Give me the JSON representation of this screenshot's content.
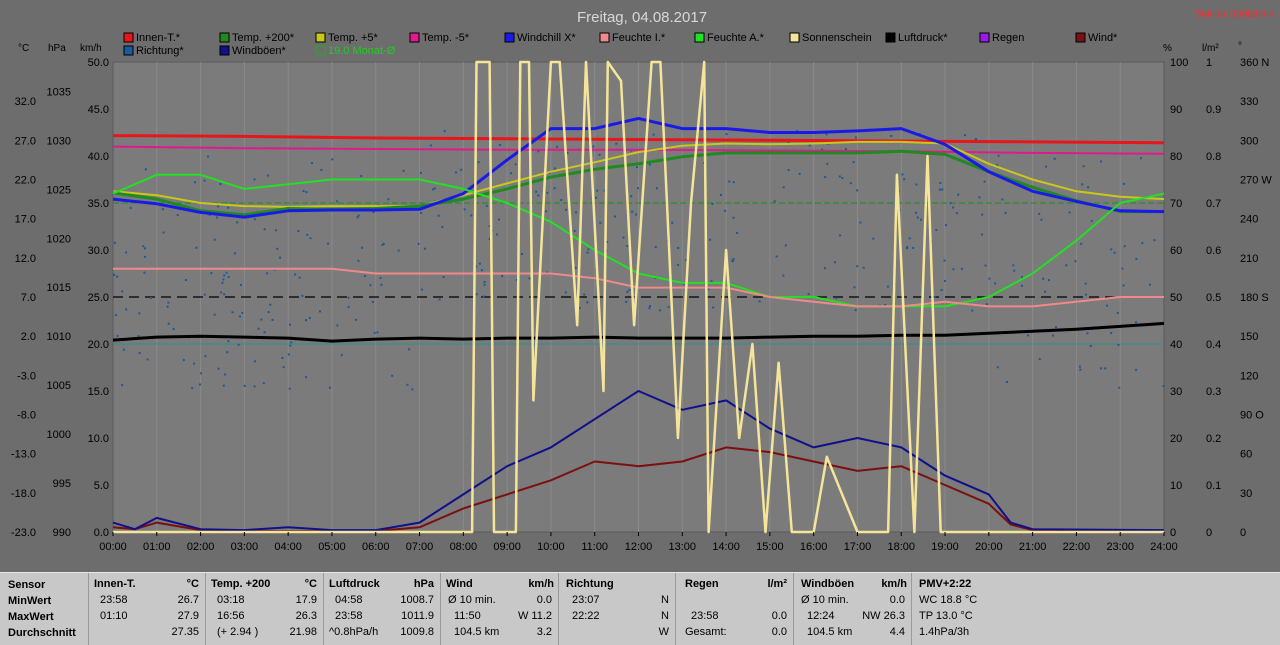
{
  "title": "Freitag, 04.08.2017",
  "station": "Station Göritzhain",
  "colors": {
    "bg": "#6d6d6d",
    "plot": "#7b7b7b",
    "grid": "#888888"
  },
  "legend": [
    {
      "label": "Innen-T.*",
      "color": "#e8161b"
    },
    {
      "label": "Temp. +200*",
      "color": "#1f8a1f"
    },
    {
      "label": "Temp. +5*",
      "color": "#c8c81c"
    },
    {
      "label": "Temp. -5*",
      "color": "#e01a8a"
    },
    {
      "label": "Windchill X*",
      "color": "#1a1ae8"
    },
    {
      "label": "Feuchte I.*",
      "color": "#f08a8a"
    },
    {
      "label": "Feuchte A.*",
      "color": "#22e022"
    },
    {
      "label": "Sonnenschein",
      "color": "#f5e59a"
    },
    {
      "label": "Luftdruck*",
      "color": "#000000"
    },
    {
      "label": "Regen",
      "color": "#9a1ae8"
    },
    {
      "label": "Wind*",
      "color": "#7a1010"
    },
    {
      "label": "Richtung*",
      "color": "#1a5a9a"
    },
    {
      "label": "Windböen*",
      "color": "#10108a"
    },
    {
      "label": "19.0 Monat-Ø",
      "color": "#22aa22"
    }
  ],
  "axis_units": {
    "c": "°C",
    "hpa": "hPa",
    "kmh": "km/h",
    "pct": "%",
    "lm2": "l/m²",
    "deg": "°"
  },
  "chart_data": {
    "type": "line",
    "title": "Freitag, 04.08.2017",
    "x_ticks": [
      "00:00",
      "01:00",
      "02:00",
      "03:00",
      "04:00",
      "05:00",
      "06:00",
      "07:00",
      "08:00",
      "09:00",
      "10:00",
      "11:00",
      "12:00",
      "13:00",
      "14:00",
      "15:00",
      "16:00",
      "17:00",
      "18:00",
      "19:00",
      "20:00",
      "21:00",
      "22:00",
      "23:00",
      "24:00"
    ],
    "temp_ticks": [
      "32.0",
      "27.0",
      "22.0",
      "17.0",
      "12.0",
      "7.0",
      "2.0",
      "-3.0",
      "-8.0",
      "-13.0",
      "-18.0",
      "-23.0"
    ],
    "hpa_ticks": [
      "1035",
      "1030",
      "1025",
      "1020",
      "1015",
      "1010",
      "1005",
      "1000",
      "995",
      "990"
    ],
    "kmh_ticks": [
      "50.0",
      "45.0",
      "40.0",
      "35.0",
      "30.0",
      "25.0",
      "20.0",
      "15.0",
      "10.0",
      "5.0",
      "0.0"
    ],
    "pct_ticks": [
      "100",
      "90",
      "80",
      "70",
      "60",
      "50",
      "40",
      "30",
      "20",
      "10",
      "0"
    ],
    "lm2_ticks": [
      "1",
      "0.9",
      "0.8",
      "0.7",
      "0.6",
      "0.5",
      "0.4",
      "0.3",
      "0.2",
      "0.1",
      "0"
    ],
    "deg_ticks": [
      "360 N",
      "330",
      "300",
      "270 W",
      "240",
      "210",
      "180 S",
      "150",
      "120",
      "90 O",
      "60",
      "30",
      "0"
    ],
    "temp_range": [
      -23,
      37
    ],
    "kmh_range": [
      0,
      50
    ],
    "hpa_range": [
      990,
      1038
    ],
    "pct_range": [
      0,
      100
    ],
    "series": [
      {
        "name": "Innen-T.*",
        "axis": "temp",
        "color": "#e8161b",
        "x": [
          0,
          3,
          6,
          9,
          12,
          15,
          18,
          21,
          24
        ],
        "y": [
          27.6,
          27.5,
          27.3,
          27.2,
          27.1,
          27.0,
          26.9,
          26.8,
          26.7
        ]
      },
      {
        "name": "Temp. -5*",
        "axis": "temp",
        "color": "#e01a8a",
        "x": [
          0,
          3,
          6,
          9,
          12,
          15,
          18,
          21,
          24
        ],
        "y": [
          26.2,
          26.0,
          25.9,
          25.8,
          25.8,
          25.7,
          25.6,
          25.4,
          25.3
        ]
      },
      {
        "name": "Temp. +5*",
        "axis": "temp",
        "color": "#c8c81c",
        "x": [
          0,
          1,
          2,
          3,
          4,
          5,
          6,
          7,
          8,
          9,
          10,
          11,
          12,
          13,
          14,
          15,
          16,
          17,
          18,
          19,
          20,
          21,
          22,
          23,
          24
        ],
        "y": [
          20.5,
          20.0,
          19.0,
          18.6,
          18.5,
          18.6,
          18.6,
          18.6,
          20.0,
          21.5,
          23.0,
          24.2,
          25.5,
          26.3,
          26.6,
          26.5,
          26.6,
          26.8,
          26.8,
          26.6,
          24.0,
          22.0,
          20.5,
          19.8,
          19.5
        ]
      },
      {
        "name": "Temp. +200*",
        "axis": "temp",
        "color": "#1f8a1f",
        "x": [
          0,
          1,
          2,
          3,
          4,
          5,
          6,
          7,
          8,
          9,
          10,
          11,
          12,
          13,
          14,
          15,
          16,
          17,
          18,
          19,
          20,
          21,
          22,
          23,
          24
        ],
        "y": [
          20.3,
          19.5,
          18.0,
          17.5,
          18.3,
          18.2,
          18.3,
          18.6,
          19.5,
          20.8,
          22.3,
          23.3,
          24.0,
          24.9,
          25.4,
          25.4,
          25.4,
          25.4,
          25.6,
          25.2,
          23.0,
          21.0,
          19.3,
          17.9,
          17.9
        ]
      },
      {
        "name": "Windchill X*",
        "axis": "temp",
        "color": "#1a1ae8",
        "x": [
          0,
          1,
          2,
          3,
          4,
          5,
          6,
          7,
          8,
          9,
          10,
          11,
          12,
          13,
          14,
          15,
          16,
          17,
          18,
          19,
          20,
          21,
          22,
          23,
          24
        ],
        "y": [
          19.5,
          18.9,
          17.8,
          17.2,
          18.0,
          18.1,
          18.1,
          18.2,
          20.2,
          24.5,
          28.5,
          28.5,
          29.8,
          28.5,
          28.5,
          28.0,
          28.0,
          28.2,
          28.5,
          26.5,
          23.0,
          20.5,
          19.2,
          18.0,
          17.9
        ]
      },
      {
        "name": "Feuchte A.*",
        "axis": "pct",
        "color": "#22e022",
        "x": [
          0,
          1,
          2,
          3,
          4,
          5,
          6,
          7,
          8,
          9,
          10,
          11,
          12,
          13,
          14,
          15,
          16,
          17,
          18,
          19,
          20,
          21,
          22,
          23,
          24
        ],
        "y": [
          72,
          76,
          76,
          73,
          74,
          75,
          75,
          75,
          73,
          70,
          66,
          60,
          55,
          53,
          53,
          50,
          50,
          48,
          48,
          48,
          50,
          55,
          62,
          70,
          72
        ]
      },
      {
        "name": "Feuchte I.*",
        "axis": "pct",
        "color": "#f08a8a",
        "x": [
          0,
          1,
          2,
          3,
          4,
          5,
          6,
          7,
          8,
          9,
          10,
          11,
          12,
          13,
          14,
          15,
          16,
          17,
          18,
          19,
          20,
          21,
          22,
          23,
          24
        ],
        "y": [
          56,
          56,
          56,
          56,
          56,
          56,
          55,
          55,
          55,
          55,
          55,
          54,
          52,
          52,
          52,
          50,
          49,
          48,
          48,
          49,
          48,
          48,
          49,
          50,
          50
        ]
      },
      {
        "name": "Luftdruck*",
        "axis": "hpa",
        "color": "#000000",
        "x": [
          0,
          1,
          2,
          3,
          4,
          5,
          6,
          7,
          8,
          9,
          10,
          11,
          12,
          13,
          14,
          15,
          16,
          17,
          18,
          19,
          20,
          21,
          22,
          23,
          24
        ],
        "y": [
          1009.6,
          1009.9,
          1010.0,
          1009.9,
          1009.8,
          1009.5,
          1009.7,
          1009.8,
          1009.7,
          1009.8,
          1009.8,
          1009.9,
          1009.8,
          1009.8,
          1009.8,
          1009.9,
          1010.0,
          1010.0,
          1010.1,
          1010.1,
          1010.3,
          1010.5,
          1010.7,
          1011.0,
          1011.3
        ]
      },
      {
        "name": "Wind*",
        "axis": "kmh",
        "color": "#7a1010",
        "x": [
          0,
          0.5,
          1,
          2,
          3,
          4,
          5,
          6,
          7,
          8,
          9,
          10,
          11,
          12,
          13,
          14,
          15,
          16,
          17,
          18,
          19,
          20,
          20.5,
          21,
          24
        ],
        "y": [
          0.5,
          0.3,
          1.0,
          0.2,
          0.1,
          0.1,
          0.1,
          0.1,
          0.5,
          2.5,
          4.0,
          5.5,
          7.5,
          7.0,
          7.5,
          9.0,
          8.5,
          7.5,
          6.5,
          7.0,
          5.0,
          3.0,
          0.8,
          0.2,
          0.1
        ]
      },
      {
        "name": "Windböen*",
        "axis": "kmh",
        "color": "#10108a",
        "x": [
          0,
          0.5,
          1,
          2,
          3,
          4,
          5,
          6,
          7,
          8,
          9,
          10,
          11,
          12,
          13,
          14,
          15,
          16,
          17,
          18,
          19,
          20,
          20.5,
          21,
          24
        ],
        "y": [
          1.0,
          0.3,
          1.5,
          0.3,
          0.2,
          0.5,
          0.2,
          0.2,
          1.0,
          4.0,
          7.0,
          9.0,
          12.0,
          15.0,
          13.0,
          14.0,
          11.0,
          9.0,
          10.0,
          9.0,
          6.0,
          4.0,
          1.0,
          0.3,
          0.2
        ]
      },
      {
        "name": "Sonnenschein",
        "axis": "kmh",
        "color": "#f5e59a",
        "x": [
          0,
          8.2,
          8.3,
          8.6,
          8.7,
          9.2,
          9.3,
          9.5,
          9.6,
          10.0,
          10.2,
          10.6,
          10.8,
          11.2,
          11.3,
          11.6,
          11.9,
          12.3,
          12.5,
          12.9,
          13.2,
          13.5,
          13.6,
          14.0,
          14.3,
          14.6,
          14.9,
          15.2,
          15.5,
          16.0,
          16.3,
          17.0,
          17.2,
          17.7,
          17.9,
          18.3,
          18.6,
          18.9,
          19.0,
          24
        ],
        "y": [
          0,
          0,
          50,
          50,
          0,
          0,
          50,
          50,
          14,
          50,
          50,
          22,
          50,
          15,
          50,
          48,
          22,
          50,
          50,
          10,
          35,
          50,
          0,
          30,
          10,
          20,
          0,
          18,
          0,
          0,
          8,
          0,
          0,
          0,
          38,
          0,
          40,
          0,
          0,
          0
        ]
      }
    ]
  },
  "table": {
    "row_labels": [
      "Sensor",
      "MinWert",
      "MaxWert",
      "Durchschnitt"
    ],
    "innen": {
      "title": "Innen-T.",
      "unit": "°C",
      "min_time": "23:58",
      "min_val": "26.7",
      "max_time": "01:10",
      "max_val": "27.9",
      "avg": "27.35"
    },
    "temp": {
      "title": "Temp. +200",
      "unit": "°C",
      "min_time": "03:18",
      "min_val": "17.9",
      "max_time": "16:56",
      "max_val": "26.3",
      "avg_note": "(+ 2.94 )",
      "avg": "21.98"
    },
    "luft": {
      "title": "Luftdruck",
      "unit": "hPa",
      "min_time": "04:58",
      "min_val": "1008.7",
      "max_time": "23:58",
      "max_val": "1011.9",
      "avg_note": "^0.8hPa/h",
      "avg": "1009.8"
    },
    "wind": {
      "title": "Wind",
      "unit": "km/h",
      "min_time": "Ø 10 min.",
      "min_val": "0.0",
      "max_time": "11:50",
      "max_val": "W 11.2",
      "avg_note": "104.5 km",
      "avg": "3.2"
    },
    "richtung": {
      "title": "Richtung",
      "min_time": "23:07",
      "min_val": "N",
      "max_time": "22:22",
      "max_val": "N",
      "avg": "W"
    },
    "regen": {
      "title": "Regen",
      "unit": "l/m²",
      "max_time": "23:58",
      "max_val": "0.0",
      "avg_note": "Gesamt:",
      "avg": "0.0"
    },
    "boeen": {
      "title": "Windböen",
      "unit": "km/h",
      "min_time": "Ø 10 min.",
      "min_val": "0.0",
      "max_time": "12:24",
      "max_val": "NW 26.3",
      "avg_note": "104.5 km",
      "avg": "4.4"
    },
    "pmv": {
      "title": "PMV+2:22",
      "l1": "WC 18.8 °C",
      "l2": "TP 13.0 °C",
      "l3": "1.4hPa/3h"
    }
  }
}
